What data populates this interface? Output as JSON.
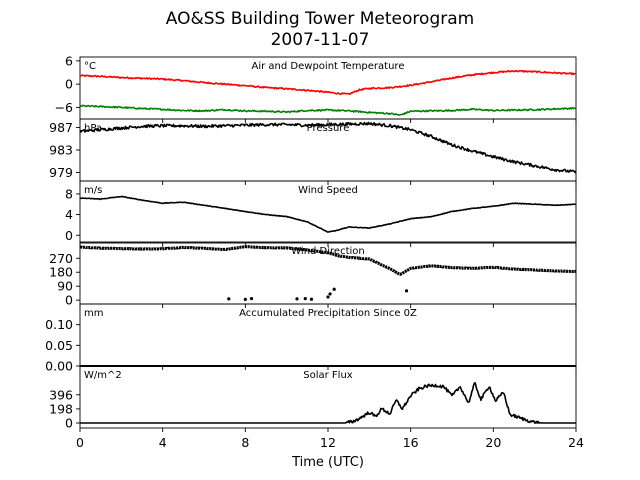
{
  "chart_data": {
    "type": "line",
    "title": "AO&SS Building Tower Meteorogram",
    "subtitle": "2007-11-07",
    "xlabel": "Time (UTC)",
    "xlim": [
      0,
      24
    ],
    "xticks": [
      0,
      4,
      8,
      12,
      16,
      20,
      24
    ],
    "panels": [
      {
        "title": "Air and Dewpoint Temperature",
        "unit": "°C",
        "ylim": [
          -9,
          7
        ],
        "yticks": [
          6,
          0,
          -6
        ],
        "ytick_labels": [
          "6",
          "0",
          "−6"
        ],
        "series": [
          {
            "color": "#ff0000",
            "x": [
              0,
              1,
              2,
              3,
              4,
              5,
              6,
              7,
              8,
              9,
              10,
              11,
              12,
              12.5,
              13,
              13.5,
              14,
              15,
              16,
              17,
              18,
              19,
              20,
              21,
              22,
              23,
              24
            ],
            "values": [
              2.2,
              2.0,
              1.7,
              1.5,
              1.3,
              0.9,
              0.4,
              0.0,
              -0.4,
              -0.9,
              -1.2,
              -1.6,
              -2.1,
              -2.4,
              -2.6,
              -1.5,
              -1.1,
              -0.9,
              -0.3,
              0.6,
              1.6,
              2.4,
              3.0,
              3.4,
              3.2,
              2.9,
              2.6
            ]
          },
          {
            "color": "#008000",
            "x": [
              0,
              1,
              2,
              3,
              4,
              5,
              6,
              7,
              8,
              9,
              10,
              11,
              12,
              13,
              14,
              15,
              15.5,
              16,
              17,
              18,
              19,
              20,
              21,
              22,
              23,
              24
            ],
            "values": [
              -5.6,
              -5.8,
              -6.0,
              -6.3,
              -6.5,
              -6.8,
              -6.9,
              -6.6,
              -6.9,
              -7.0,
              -7.2,
              -6.8,
              -6.7,
              -6.9,
              -7.3,
              -7.6,
              -8.0,
              -7.0,
              -6.9,
              -6.8,
              -6.5,
              -6.8,
              -6.7,
              -6.6,
              -6.4,
              -6.2
            ]
          }
        ]
      },
      {
        "title": "Pressure",
        "unit": "hPa",
        "ylim": [
          977.5,
          988.5
        ],
        "yticks": [
          987,
          983,
          979
        ],
        "ytick_labels": [
          "987",
          "983",
          "979"
        ],
        "series": [
          {
            "color": "#000000",
            "x": [
              0,
              1,
              2,
              3,
              4,
              5,
              6,
              7,
              8,
              9,
              10,
              11,
              12,
              13,
              14,
              15,
              16,
              17,
              18,
              19,
              20,
              21,
              22,
              23,
              24
            ],
            "values": [
              986.3,
              986.6,
              986.9,
              987.2,
              987.3,
              987.3,
              987.2,
              987.3,
              987.4,
              987.5,
              987.5,
              987.4,
              987.5,
              987.6,
              987.7,
              987.3,
              986.6,
              985.4,
              983.9,
              982.8,
              981.8,
              980.9,
              980.2,
              979.5,
              979.1
            ]
          }
        ]
      },
      {
        "title": "Wind Speed",
        "unit": "m/s",
        "ylim": [
          -1.5,
          10.5
        ],
        "yticks": [
          8,
          4,
          0
        ],
        "ytick_labels": [
          "8",
          "4",
          "0"
        ],
        "series": [
          {
            "color": "#000000",
            "x": [
              0,
              1,
              2,
              3,
              4,
              5,
              6,
              7,
              8,
              9,
              10,
              11,
              11.5,
              12,
              12.5,
              13,
              14,
              15,
              16,
              17,
              18,
              19,
              20,
              21,
              22,
              23,
              24
            ],
            "values": [
              7.2,
              7.0,
              7.5,
              6.8,
              6.2,
              6.4,
              5.8,
              5.2,
              4.6,
              4.0,
              3.6,
              2.6,
              1.6,
              0.6,
              1.0,
              1.6,
              1.4,
              2.2,
              3.2,
              3.6,
              4.6,
              5.2,
              5.6,
              6.2,
              6.0,
              5.8,
              6.0
            ]
          }
        ]
      },
      {
        "title": "Wind Direction",
        "unit": "",
        "ylim": [
          -25,
          375
        ],
        "yticks": [
          270,
          180,
          90,
          0
        ],
        "ytick_labels": [
          "270",
          "180",
          "90",
          "0"
        ],
        "series": [
          {
            "color": "#000000",
            "x": [
              0,
              1,
              2,
              3,
              4,
              5,
              6,
              7,
              8,
              9,
              10,
              11,
              12,
              12.5,
              13,
              14,
              15,
              15.5,
              16,
              17,
              18,
              19,
              20,
              21,
              22,
              23,
              24
            ],
            "values": [
              342,
              335,
              332,
              330,
              331,
              340,
              334,
              326,
              345,
              338,
              337,
              324,
              306,
              286,
              276,
              265,
              202,
              165,
              205,
              222,
              210,
              205,
              212,
              200,
              195,
              188,
              185
            ]
          }
        ],
        "outliers_x": [
          7.2,
          8.0,
          8.3,
          10.5,
          10.9,
          11.2,
          12.0,
          12.1,
          12.3,
          15.8
        ],
        "outliers_y": [
          8,
          5,
          10,
          8,
          10,
          6,
          20,
          40,
          70,
          60
        ]
      },
      {
        "title": "Accumulated Precipitation Since 0Z",
        "unit": "mm",
        "ylim": [
          0,
          0.15
        ],
        "yticks": [
          0.1,
          0.05,
          0.0
        ],
        "ytick_labels": [
          "0.10",
          "0.05",
          "0.00"
        ],
        "series": [
          {
            "color": "#000000",
            "x": [
              0,
              24
            ],
            "values": [
              0,
              0
            ]
          }
        ]
      },
      {
        "title": "Solar Flux",
        "unit": "W/m^2",
        "ylim": [
          -70,
          800
        ],
        "yticks": [
          396,
          198,
          0
        ],
        "ytick_labels": [
          "396",
          "198",
          "0"
        ],
        "series": [
          {
            "color": "#000000",
            "x": [
              0,
              12.8,
              13.2,
              13.5,
              14.0,
              14.3,
              14.6,
              15.0,
              15.3,
              15.6,
              16.0,
              16.4,
              16.8,
              17.2,
              17.6,
              18.0,
              18.4,
              18.8,
              19.1,
              19.4,
              19.8,
              20.1,
              20.5,
              20.8,
              21.2,
              21.6,
              22.0,
              22.4,
              24
            ],
            "values": [
              0,
              0,
              20,
              60,
              150,
              90,
              200,
              130,
              320,
              200,
              380,
              480,
              520,
              530,
              510,
              380,
              510,
              280,
              560,
              330,
              520,
              310,
              430,
              120,
              80,
              40,
              10,
              0,
              0
            ]
          }
        ]
      }
    ]
  }
}
